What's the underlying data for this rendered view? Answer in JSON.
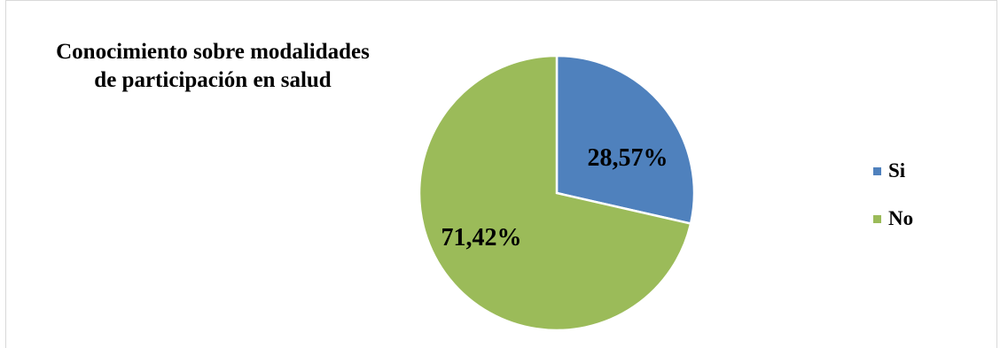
{
  "chart_data": {
    "type": "pie",
    "title_lines": [
      "Conocimiento sobre modalidades",
      "de participación en salud"
    ],
    "categories": [
      "Si",
      "No"
    ],
    "values": [
      28.57,
      71.42
    ],
    "data_labels": [
      "28,57%",
      "71,42%"
    ],
    "colors": [
      "#4F81BD",
      "#9BBB59"
    ],
    "legend_position": "right"
  }
}
